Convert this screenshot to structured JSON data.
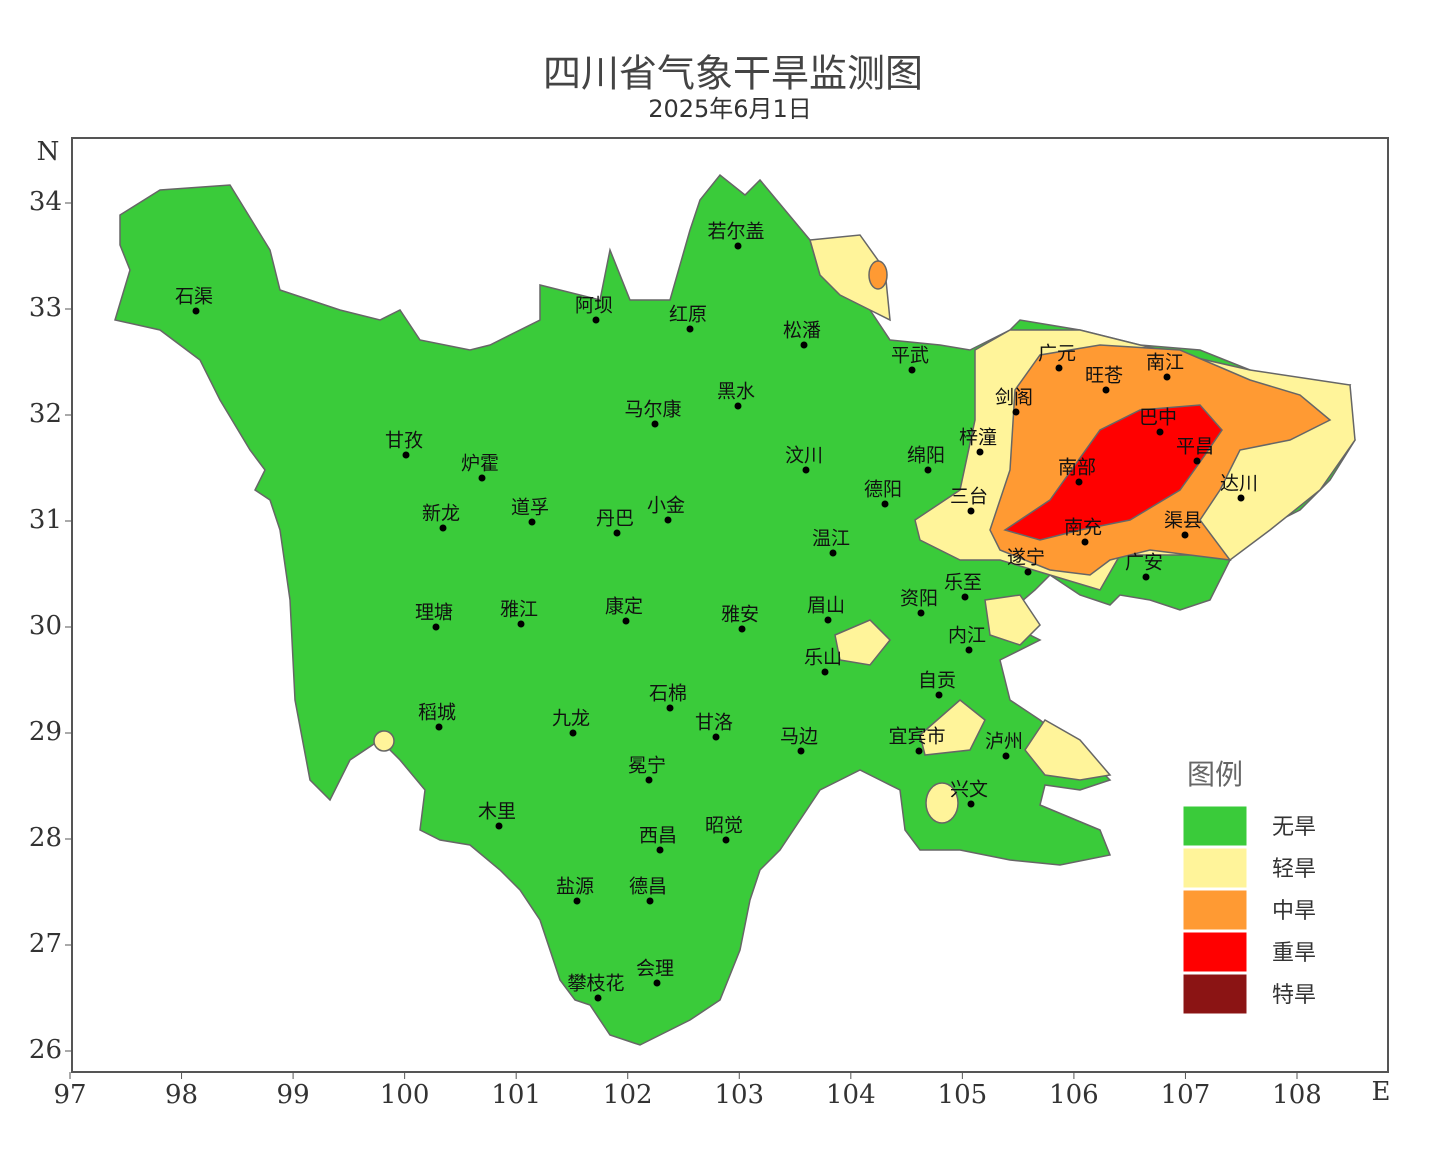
{
  "title": "四川省气象干旱监测图",
  "subtitle": "2025年6月1日",
  "x_axis": {
    "label": "E",
    "ticks": [
      97,
      98,
      99,
      100,
      101,
      102,
      103,
      104,
      105,
      106,
      107,
      108
    ]
  },
  "y_axis": {
    "label": "N",
    "ticks": [
      26,
      27,
      28,
      29,
      30,
      31,
      32,
      33,
      34
    ]
  },
  "cities": [
    "石渠",
    "若尔盖",
    "阿坝",
    "红原",
    "松潘",
    "平武",
    "广元",
    "旺苍",
    "南江",
    "剑阁",
    "巴中",
    "平昌",
    "马尔康",
    "黑水",
    "甘孜",
    "炉霍",
    "梓潼",
    "绵阳",
    "汶川",
    "南部",
    "达川",
    "德阳",
    "三台",
    "新龙",
    "道孚",
    "丹巴",
    "小金",
    "南充",
    "渠县",
    "温江",
    "遂宁",
    "广安",
    "乐至",
    "资阳",
    "理塘",
    "雅江",
    "康定",
    "雅安",
    "眉山",
    "内江",
    "乐山",
    "自贡",
    "石棉",
    "稻城",
    "九龙",
    "甘洛",
    "马边",
    "宜宾市",
    "泸州",
    "冕宁",
    "兴文",
    "木里",
    "西昌",
    "昭觉",
    "盐源",
    "德昌",
    "会理",
    "攀枝花"
  ],
  "legend": {
    "title": "图例",
    "items": [
      {
        "label": "无旱",
        "color": "#3acb3a"
      },
      {
        "label": "轻旱",
        "color": "#fff49a"
      },
      {
        "label": "中旱",
        "color": "#ff9a33"
      },
      {
        "label": "重旱",
        "color": "#ff0000"
      },
      {
        "label": "特旱",
        "color": "#8b1414"
      }
    ]
  }
}
